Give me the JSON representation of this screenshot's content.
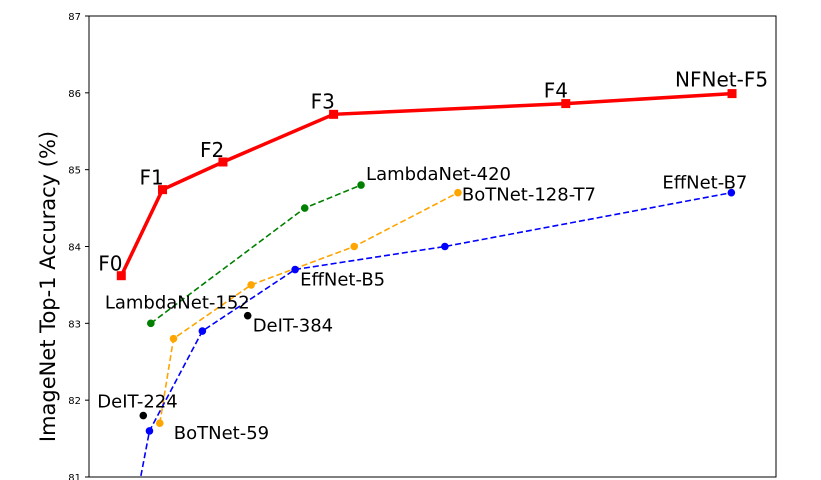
{
  "chart_data": {
    "type": "line",
    "title": "",
    "xlabel": "",
    "ylabel": "ImageNet Top-1 Accuracy (%)",
    "ylim": [
      81,
      87
    ],
    "xlim": [
      0,
      100
    ],
    "yticks": [
      81,
      82,
      83,
      84,
      85,
      86,
      87
    ],
    "grid": false,
    "legend": "none",
    "series": [
      {
        "name": "NFNet",
        "color": "#ff0000",
        "style": "solid",
        "marker": "square",
        "points": [
          {
            "x": 4.7,
            "y": 83.62,
            "label": "F0"
          },
          {
            "x": 10.7,
            "y": 84.74,
            "label": "F1"
          },
          {
            "x": 19.5,
            "y": 85.1,
            "label": "F2"
          },
          {
            "x": 35.6,
            "y": 85.72,
            "label": "F3"
          },
          {
            "x": 69.4,
            "y": 85.86,
            "label": "F4"
          },
          {
            "x": 93.6,
            "y": 85.99,
            "label": "NFNet-F5"
          }
        ]
      },
      {
        "name": "LambdaNet",
        "color": "#008000",
        "style": "dashed",
        "marker": "circle",
        "points": [
          {
            "x": 9.0,
            "y": 83.0,
            "label": "LambdaNet-152"
          },
          {
            "x": 31.4,
            "y": 84.5,
            "label": ""
          },
          {
            "x": 39.6,
            "y": 84.8,
            "label": "LambdaNet-420"
          }
        ]
      },
      {
        "name": "BoTNet",
        "color": "#ffa500",
        "style": "dashed",
        "marker": "circle",
        "points": [
          {
            "x": 10.3,
            "y": 81.7,
            "label": "BoTNet-59"
          },
          {
            "x": 12.3,
            "y": 82.8,
            "label": ""
          },
          {
            "x": 23.6,
            "y": 83.5,
            "label": ""
          },
          {
            "x": 38.6,
            "y": 84.0,
            "label": ""
          },
          {
            "x": 53.7,
            "y": 84.7,
            "label": "BoTNet-128-T7"
          }
        ]
      },
      {
        "name": "EffNet",
        "color": "#0000ff",
        "style": "dashed",
        "marker": "circle",
        "points": [
          {
            "x": 7.3,
            "y": 80.9,
            "label": ""
          },
          {
            "x": 8.8,
            "y": 81.6,
            "label": ""
          },
          {
            "x": 16.5,
            "y": 82.9,
            "label": ""
          },
          {
            "x": 30.0,
            "y": 83.7,
            "label": "EffNet-B5"
          },
          {
            "x": 51.8,
            "y": 84.0,
            "label": ""
          },
          {
            "x": 93.5,
            "y": 84.7,
            "label": "EffNet-B7"
          }
        ]
      },
      {
        "name": "DeIT",
        "color": "#000000",
        "style": "none",
        "marker": "circle",
        "points": [
          {
            "x": 7.9,
            "y": 81.8,
            "label": "DeIT-224"
          },
          {
            "x": 23.1,
            "y": 83.1,
            "label": "DeIT-384"
          }
        ]
      }
    ]
  }
}
